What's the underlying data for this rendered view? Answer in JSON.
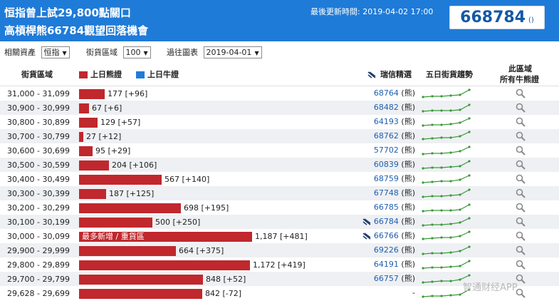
{
  "header": {
    "title_line1": "恒指曾上試29,800點關口",
    "title_line2": "高槓桿熊66784觀望回落機會",
    "updated_label": "最後更新時間: 2019-04-02 17:00",
    "badge_code": "668784",
    "badge_suffix": "()"
  },
  "filters": {
    "asset_label": "相關資產",
    "asset_value": "恒指",
    "zone_label": "街貨區域",
    "zone_value": "100",
    "past_label": "過往圖表",
    "past_value": "2019-04-01"
  },
  "columns": {
    "zone": "街貨區域",
    "bear": "上日熊證",
    "bull": "上日牛證",
    "ubs": "瑞信精選",
    "trend": "五日街貨趨勢",
    "all_line1": "此區域",
    "all_line2": "所有牛熊證"
  },
  "colors": {
    "header_bg": "#1f7bd8",
    "bear": "#c0282d",
    "bull": "#1f7bd8",
    "trend": "#3a9a3a",
    "code": "#1f5fb0"
  },
  "rows": [
    {
      "range": "31,000 - 31,099",
      "bear": 177,
      "label": "177 [+96]",
      "code": "68764",
      "suffix": "(熊)",
      "selected": false,
      "annotation": ""
    },
    {
      "range": "30,900 - 30,999",
      "bear": 67,
      "label": "67 [+6]",
      "code": "68482",
      "suffix": "(熊)",
      "selected": false,
      "annotation": ""
    },
    {
      "range": "30,800 - 30,899",
      "bear": 129,
      "label": "129 [+57]",
      "code": "64193",
      "suffix": "(熊)",
      "selected": false,
      "annotation": ""
    },
    {
      "range": "30,700 - 30,799",
      "bear": 27,
      "label": "27 [+12]",
      "code": "68762",
      "suffix": "(熊)",
      "selected": false,
      "annotation": ""
    },
    {
      "range": "30,600 - 30,699",
      "bear": 95,
      "label": "95 [+29]",
      "code": "57702",
      "suffix": "(熊)",
      "selected": false,
      "annotation": ""
    },
    {
      "range": "30,500 - 30,599",
      "bear": 204,
      "label": "204 [+106]",
      "code": "60839",
      "suffix": "(熊)",
      "selected": false,
      "annotation": ""
    },
    {
      "range": "30,400 - 30,499",
      "bear": 567,
      "label": "567 [+140]",
      "code": "68759",
      "suffix": "(熊)",
      "selected": false,
      "annotation": ""
    },
    {
      "range": "30,300 - 30,399",
      "bear": 187,
      "label": "187 [+125]",
      "code": "67748",
      "suffix": "(熊)",
      "selected": false,
      "annotation": ""
    },
    {
      "range": "30,200 - 30,299",
      "bear": 698,
      "label": "698 [+195]",
      "code": "66785",
      "suffix": "(熊)",
      "selected": false,
      "annotation": ""
    },
    {
      "range": "30,100 - 30,199",
      "bear": 500,
      "label": "500 [+250]",
      "code": "66784",
      "suffix": "(熊)",
      "selected": true,
      "annotation": ""
    },
    {
      "range": "30,000 - 30,099",
      "bear": 1187,
      "label": "1,187 [+481]",
      "code": "66766",
      "suffix": "(熊)",
      "selected": true,
      "annotation": "最多新增 / 重貨區"
    },
    {
      "range": "29,900 - 29,999",
      "bear": 664,
      "label": "664 [+375]",
      "code": "69226",
      "suffix": "(熊)",
      "selected": false,
      "annotation": ""
    },
    {
      "range": "29,800 - 29,899",
      "bear": 1172,
      "label": "1,172 [+419]",
      "code": "64191",
      "suffix": "(熊)",
      "selected": false,
      "annotation": ""
    },
    {
      "range": "29,700 - 29,799",
      "bear": 848,
      "label": "848 [+52]",
      "code": "66757",
      "suffix": "(熊)",
      "selected": false,
      "annotation": ""
    },
    {
      "range": "29,628 - 29,699",
      "bear": 842,
      "label": "842 [-72]",
      "code": "",
      "suffix": "-",
      "selected": false,
      "annotation": ""
    }
  ],
  "watermark": "智通财经APP"
}
